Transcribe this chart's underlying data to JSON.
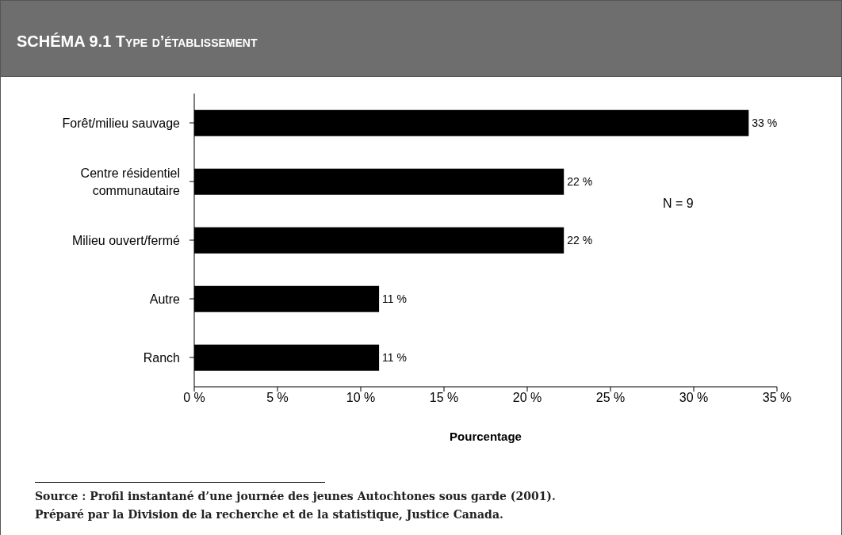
{
  "chart_data": {
    "type": "bar",
    "orientation": "horizontal",
    "title": "SCHÉMA 9.1 Type d’établissement",
    "xlabel": "Pourcentage",
    "categories": [
      "Forêt/milieu sauvage",
      "Centre résidentiel communautaire",
      "Milieu ouvert/fermé",
      "Autre",
      "Ranch"
    ],
    "values": [
      33.3,
      22.2,
      22.2,
      11.1,
      11.1
    ],
    "value_labels": [
      "33 %",
      "22 %",
      "22 %",
      "11 %",
      "11 %"
    ],
    "color": "#000000",
    "xlim": [
      0,
      35
    ],
    "xticks": [
      {
        "value": 0,
        "label": "0 %"
      },
      {
        "value": 5,
        "label": "5 %"
      },
      {
        "value": 10,
        "label": "10 %"
      },
      {
        "value": 15,
        "label": "15 %"
      },
      {
        "value": 20,
        "label": "20 %"
      },
      {
        "value": 25,
        "label": "25 %"
      },
      {
        "value": 30,
        "label": "30 %"
      },
      {
        "value": 35,
        "label": "35 %"
      }
    ],
    "annotations": [
      "N = 9",
      "Source : Profil instantané d’une journée des jeunes Autochtones sous garde (2001).",
      "Préparé par la Division de la recherche et de la statistique, Justice Canada."
    ]
  }
}
